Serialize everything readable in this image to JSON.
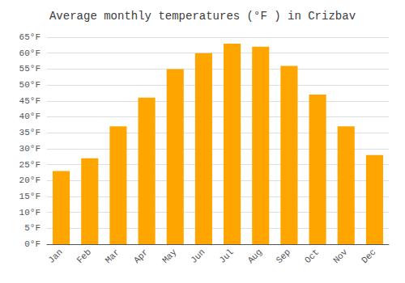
{
  "chart_data": {
    "type": "bar",
    "title": "Average monthly temperatures (°F ) in Crizbav",
    "categories": [
      "Jan",
      "Feb",
      "Mar",
      "Apr",
      "May",
      "Jun",
      "Jul",
      "Aug",
      "Sep",
      "Oct",
      "Nov",
      "Dec"
    ],
    "values": [
      23,
      27,
      37,
      46,
      55,
      60,
      63,
      62,
      56,
      47,
      37,
      28
    ],
    "color": "#FFA500",
    "ylim": [
      0,
      65
    ],
    "yticks": [
      {
        "value": 0,
        "label": "0°F"
      },
      {
        "value": 5,
        "label": "5°F"
      },
      {
        "value": 10,
        "label": "10°F"
      },
      {
        "value": 15,
        "label": "15°F"
      },
      {
        "value": 20,
        "label": "20°F"
      },
      {
        "value": 25,
        "label": "25°F"
      },
      {
        "value": 30,
        "label": "30°F"
      },
      {
        "value": 35,
        "label": "35°F"
      },
      {
        "value": 40,
        "label": "40°F"
      },
      {
        "value": 45,
        "label": "45°F"
      },
      {
        "value": 50,
        "label": "50°F"
      },
      {
        "value": 55,
        "label": "55°F"
      },
      {
        "value": 60,
        "label": "60°F"
      },
      {
        "value": 65,
        "label": "65°F"
      }
    ],
    "grid": true
  }
}
